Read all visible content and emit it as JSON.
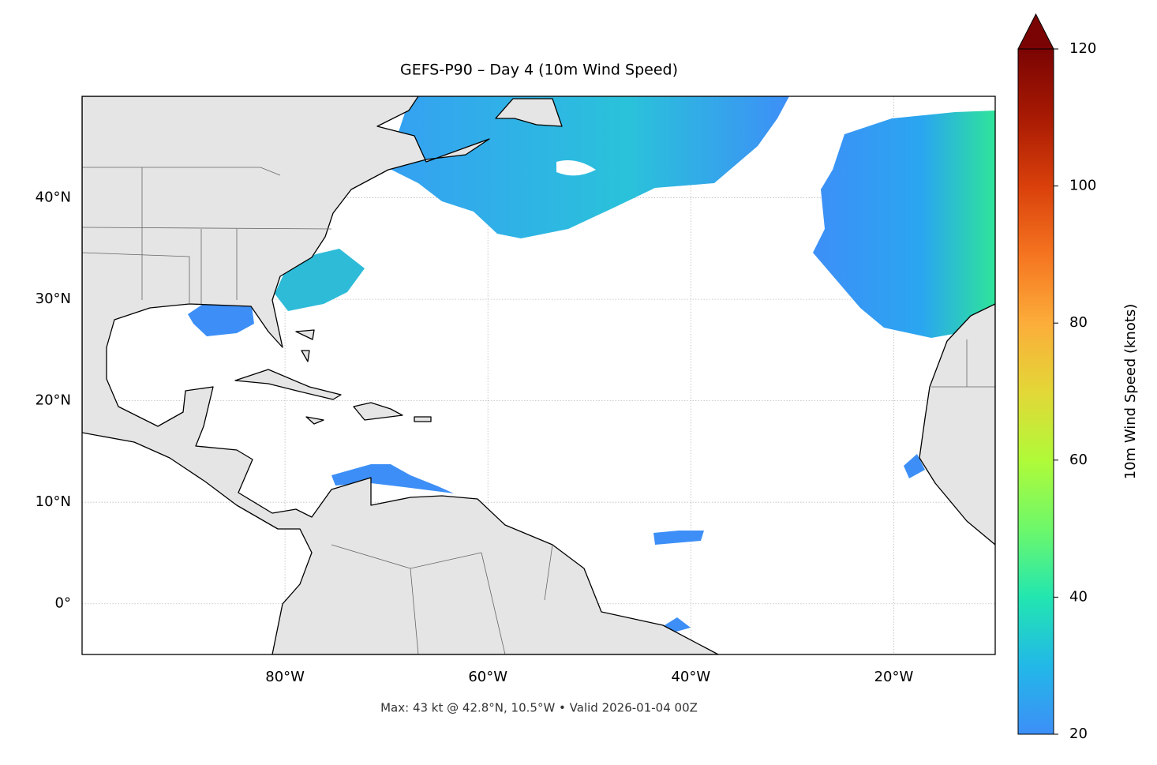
{
  "title": "GEFS-P90 – Day 4 (10m Wind Speed)",
  "map": {
    "xlim": [
      -100,
      -10
    ],
    "ylim": [
      -5,
      50
    ],
    "xticks": [
      {
        "value": -80,
        "label": "80°W"
      },
      {
        "value": -60,
        "label": "60°W"
      },
      {
        "value": -40,
        "label": "40°W"
      },
      {
        "value": -20,
        "label": "20°W"
      }
    ],
    "yticks": [
      {
        "value": 0,
        "label": "0°"
      },
      {
        "value": 10,
        "label": "10°N"
      },
      {
        "value": 20,
        "label": "20°N"
      },
      {
        "value": 30,
        "label": "30°N"
      },
      {
        "value": 40,
        "label": "40°N"
      }
    ],
    "grid": true
  },
  "colorbar": {
    "label": "10m Wind Speed (knots)",
    "lim": [
      20,
      120
    ],
    "ticks": [
      20,
      40,
      60,
      80,
      100,
      120
    ]
  },
  "footer": "Max: 43 kt @ 42.8°N, 10.5°W • Valid 2026-01-04 00Z"
}
